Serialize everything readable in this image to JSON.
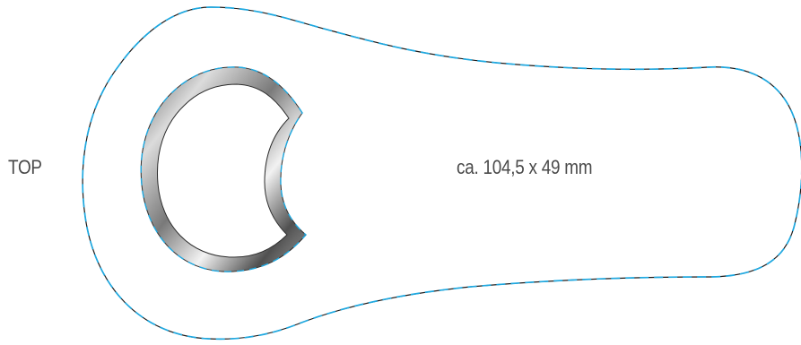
{
  "labels": {
    "side": "TOP",
    "dimensions": "ca. 104,5 x 49 mm"
  },
  "colors": {
    "outline": "#1a1a1a",
    "dashed_cut_line": "#1fa9e1",
    "ring_dark": "#3f3f3f",
    "ring_light": "#e7e7e7",
    "text": "#4a4a4a",
    "background": "#ffffff"
  }
}
